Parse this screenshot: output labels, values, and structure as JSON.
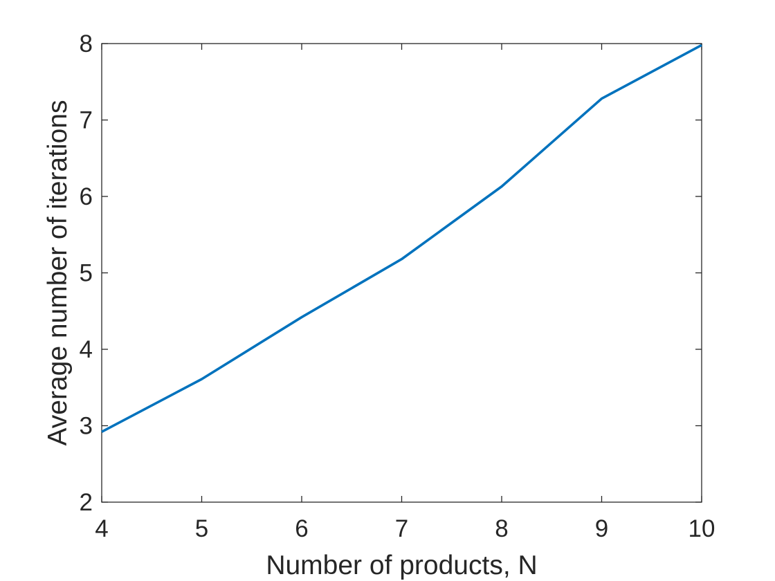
{
  "chart_data": {
    "type": "line",
    "title": "",
    "xlabel": "Number of products, N",
    "ylabel": "Average number of iterations",
    "xlim": [
      4,
      10
    ],
    "ylim": [
      2,
      8
    ],
    "xticks": [
      4,
      5,
      6,
      7,
      8,
      9,
      10
    ],
    "yticks": [
      2,
      3,
      4,
      5,
      6,
      7,
      8
    ],
    "grid": false,
    "box": true,
    "series": [
      {
        "color": "#0072BD",
        "x": [
          4,
          5,
          6,
          7,
          8,
          9,
          10
        ],
        "y": [
          2.92,
          3.61,
          4.42,
          5.18,
          6.13,
          7.28,
          7.98
        ]
      }
    ]
  }
}
